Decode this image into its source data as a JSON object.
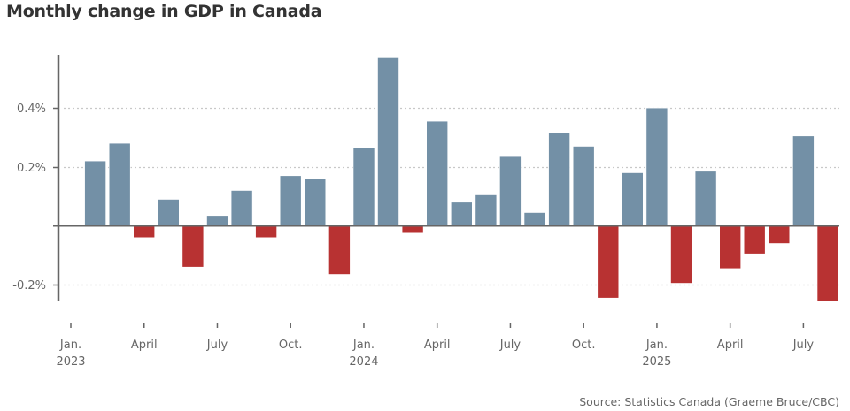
{
  "title": "Monthly change in GDP in Canada",
  "source": "Source: Statistics Canada (Graeme Bruce/CBC)",
  "colors": {
    "positive": "#7390a6",
    "negative": "#b83232",
    "axis": "#666666",
    "grid": "#c8c8c8"
  },
  "chart_data": {
    "type": "bar",
    "title": "Monthly change in GDP in Canada",
    "xlabel": "",
    "ylabel": "",
    "unit": "%",
    "ylim": [
      -0.26,
      0.58
    ],
    "grid": true,
    "yticks": [
      {
        "value": 0.4,
        "label": "0.4%"
      },
      {
        "value": 0.2,
        "label": "0.2%"
      },
      {
        "value": -0.2,
        "label": "-0.2%"
      }
    ],
    "xticks": [
      {
        "index": 0,
        "label": "Jan.",
        "sublabel": "2023"
      },
      {
        "index": 3,
        "label": "April",
        "sublabel": ""
      },
      {
        "index": 6,
        "label": "July",
        "sublabel": ""
      },
      {
        "index": 9,
        "label": "Oct.",
        "sublabel": ""
      },
      {
        "index": 12,
        "label": "Jan.",
        "sublabel": "2024"
      },
      {
        "index": 15,
        "label": "April",
        "sublabel": ""
      },
      {
        "index": 18,
        "label": "July",
        "sublabel": ""
      },
      {
        "index": 21,
        "label": "Oct.",
        "sublabel": ""
      },
      {
        "index": 24,
        "label": "Jan.",
        "sublabel": "2025"
      },
      {
        "index": 27,
        "label": "April",
        "sublabel": ""
      },
      {
        "index": 30,
        "label": "July",
        "sublabel": ""
      }
    ],
    "categories": [
      "2023-01",
      "2023-02",
      "2023-03",
      "2023-04",
      "2023-05",
      "2023-06",
      "2023-07",
      "2023-08",
      "2023-09",
      "2023-10",
      "2023-11",
      "2023-12",
      "2024-01",
      "2024-02",
      "2024-03",
      "2024-04",
      "2024-05",
      "2024-06",
      "2024-07",
      "2024-08",
      "2024-09",
      "2024-10",
      "2024-11",
      "2024-12",
      "2025-01",
      "2025-02",
      "2025-03",
      "2025-04",
      "2025-05",
      "2025-06",
      "2025-07",
      "2025-08"
    ],
    "values": [
      0.0,
      0.22,
      0.28,
      -0.04,
      0.09,
      -0.14,
      0.035,
      0.12,
      -0.04,
      0.17,
      0.16,
      -0.165,
      0.265,
      0.57,
      -0.025,
      0.355,
      0.08,
      0.105,
      0.235,
      0.045,
      0.315,
      0.27,
      -0.245,
      0.18,
      0.4,
      -0.195,
      0.185,
      -0.145,
      -0.095,
      -0.06,
      0.305,
      -0.255
    ]
  }
}
